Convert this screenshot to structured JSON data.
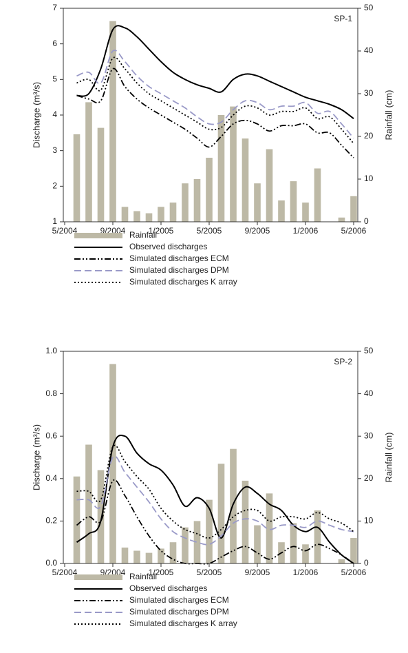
{
  "chart_data": [
    {
      "type": "combo",
      "title": "SP-1",
      "ylabel": "Discharge (m³/s)",
      "y2label": "Rainfall (cm)",
      "x": [
        "6/2004",
        "7/2004",
        "8/2004",
        "9/2004",
        "10/2004",
        "11/2004",
        "12/2004",
        "1/2005",
        "2/2005",
        "3/2005",
        "4/2005",
        "5/2005",
        "6/2005",
        "7/2005",
        "8/2005",
        "9/2005",
        "10/2005",
        "11/2005",
        "12/2005",
        "1/2006",
        "2/2006",
        "3/2006",
        "4/2006",
        "5/2006"
      ],
      "xlim": [
        "5/2004",
        "5/2006"
      ],
      "xticks": [
        "5/2004",
        "9/2004",
        "1/2005",
        "5/2005",
        "9/2005",
        "1/2006",
        "5/2006"
      ],
      "ylim": [
        1,
        7
      ],
      "yticks": [
        1,
        2,
        3,
        4,
        5,
        6,
        7
      ],
      "y2lim": [
        0,
        50
      ],
      "y2ticks": [
        0,
        10,
        20,
        30,
        40,
        50
      ],
      "series": [
        {
          "name": "Rainfall",
          "style": "bar",
          "axis": "y2",
          "color": "#bdb9a6",
          "values": [
            20.5,
            28,
            22,
            47,
            3.5,
            2.5,
            2,
            3.5,
            4.5,
            9,
            10,
            15,
            25,
            27,
            19.5,
            9,
            17,
            5,
            9.5,
            4.5,
            12.5,
            0,
            1,
            6
          ]
        },
        {
          "name": "Observed discharges",
          "style": "solid",
          "color": "#000000",
          "values": [
            4.55,
            4.6,
            5.3,
            6.4,
            6.45,
            6.2,
            5.85,
            5.5,
            5.2,
            5.0,
            4.85,
            4.75,
            4.65,
            5.0,
            5.15,
            5.1,
            4.95,
            4.8,
            4.65,
            4.5,
            4.4,
            4.3,
            4.15,
            3.9
          ]
        },
        {
          "name": "Simulated discharges ECM",
          "style": "dashdot",
          "color": "#000000",
          "values": [
            4.55,
            4.45,
            4.4,
            5.3,
            4.8,
            4.45,
            4.2,
            4.0,
            3.8,
            3.6,
            3.35,
            3.1,
            3.4,
            3.75,
            3.85,
            3.75,
            3.55,
            3.7,
            3.7,
            3.75,
            3.5,
            3.5,
            3.15,
            2.8
          ]
        },
        {
          "name": "Simulated discharges DPM",
          "style": "dashed",
          "color": "#9a9ac8",
          "values": [
            5.1,
            5.2,
            4.9,
            5.8,
            5.5,
            5.1,
            4.8,
            4.6,
            4.4,
            4.2,
            3.95,
            3.75,
            3.8,
            4.15,
            4.4,
            4.35,
            4.15,
            4.25,
            4.25,
            4.35,
            4.05,
            4.1,
            3.75,
            3.35
          ]
        },
        {
          "name": "Simulated discharges K array",
          "style": "dotted",
          "color": "#000000",
          "values": [
            4.9,
            5.0,
            4.7,
            5.6,
            5.3,
            4.9,
            4.6,
            4.4,
            4.2,
            4.0,
            3.8,
            3.6,
            3.65,
            4.0,
            4.25,
            4.2,
            4.0,
            4.1,
            4.1,
            4.2,
            3.9,
            3.95,
            3.6,
            3.2
          ]
        }
      ]
    },
    {
      "type": "combo",
      "title": "SP-2",
      "ylabel": "Discharge (m³/s)",
      "y2label": "Rainfall (cm)",
      "x": [
        "6/2004",
        "7/2004",
        "8/2004",
        "9/2004",
        "10/2004",
        "11/2004",
        "12/2004",
        "1/2005",
        "2/2005",
        "3/2005",
        "4/2005",
        "5/2005",
        "6/2005",
        "7/2005",
        "8/2005",
        "9/2005",
        "10/2005",
        "11/2005",
        "12/2005",
        "1/2006",
        "2/2006",
        "3/2006",
        "4/2006",
        "5/2006"
      ],
      "xlim": [
        "5/2004",
        "5/2006"
      ],
      "xticks": [
        "5/2004",
        "9/2004",
        "1/2005",
        "5/2005",
        "9/2005",
        "1/2006",
        "5/2006"
      ],
      "ylim": [
        0,
        1
      ],
      "yticks": [
        {
          "value": 0,
          "label": "0.0"
        },
        {
          "value": 0.2,
          "label": "0.2"
        },
        {
          "value": 0.4,
          "label": "0.4"
        },
        {
          "value": 0.6,
          "label": "0.6"
        },
        {
          "value": 0.8,
          "label": "0.8"
        },
        {
          "value": 1,
          "label": "1.0"
        }
      ],
      "y2lim": [
        0,
        50
      ],
      "y2ticks": [
        0,
        10,
        20,
        30,
        40,
        50
      ],
      "series": [
        {
          "name": "Rainfall",
          "style": "bar",
          "axis": "y2",
          "color": "#bdb9a6",
          "values": [
            20.5,
            28,
            22,
            47,
            3.75,
            3,
            2.5,
            3.5,
            5,
            8.5,
            10,
            15,
            23.5,
            27,
            19.5,
            9,
            16.5,
            5,
            9.5,
            4.5,
            12.5,
            0,
            1,
            6
          ]
        },
        {
          "name": "Observed discharges",
          "style": "solid",
          "color": "#000000",
          "values": [
            0.1,
            0.14,
            0.2,
            0.55,
            0.6,
            0.52,
            0.47,
            0.44,
            0.37,
            0.27,
            0.31,
            0.26,
            0.12,
            0.28,
            0.36,
            0.33,
            0.28,
            0.25,
            0.18,
            0.15,
            0.17,
            0.1,
            0.04,
            0.0
          ]
        },
        {
          "name": "Simulated discharges ECM",
          "style": "dashdot",
          "color": "#000000",
          "values": [
            0.18,
            0.22,
            0.2,
            0.39,
            0.32,
            0.22,
            0.13,
            0.06,
            0.02,
            0.0,
            0.0,
            0.0,
            0.03,
            0.06,
            0.08,
            0.05,
            0.02,
            0.05,
            0.08,
            0.06,
            0.09,
            0.07,
            0.04,
            0.0
          ]
        },
        {
          "name": "Simulated discharges DPM",
          "style": "dashed",
          "color": "#9a9ac8",
          "values": [
            0.3,
            0.3,
            0.27,
            0.5,
            0.43,
            0.36,
            0.29,
            0.21,
            0.15,
            0.12,
            0.1,
            0.09,
            0.13,
            0.19,
            0.21,
            0.2,
            0.16,
            0.18,
            0.18,
            0.17,
            0.2,
            0.18,
            0.16,
            0.15
          ]
        },
        {
          "name": "Simulated discharges K array",
          "style": "dotted",
          "color": "#000000",
          "values": [
            0.34,
            0.34,
            0.3,
            0.55,
            0.48,
            0.41,
            0.35,
            0.26,
            0.2,
            0.16,
            0.14,
            0.12,
            0.16,
            0.22,
            0.25,
            0.25,
            0.2,
            0.22,
            0.22,
            0.21,
            0.24,
            0.21,
            0.19,
            0.15
          ]
        }
      ]
    }
  ]
}
